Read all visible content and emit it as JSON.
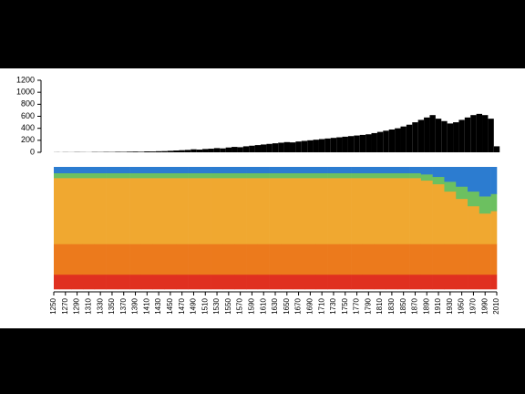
{
  "chart_data": [
    {
      "type": "bar",
      "color": "#000000",
      "x": [
        1250,
        1260,
        1270,
        1280,
        1290,
        1300,
        1310,
        1320,
        1330,
        1340,
        1350,
        1360,
        1370,
        1380,
        1390,
        1400,
        1410,
        1420,
        1430,
        1440,
        1450,
        1460,
        1470,
        1480,
        1490,
        1500,
        1510,
        1520,
        1530,
        1540,
        1550,
        1560,
        1570,
        1580,
        1590,
        1600,
        1610,
        1620,
        1630,
        1640,
        1650,
        1660,
        1670,
        1680,
        1690,
        1700,
        1710,
        1720,
        1730,
        1740,
        1750,
        1760,
        1770,
        1780,
        1790,
        1800,
        1810,
        1820,
        1830,
        1840,
        1850,
        1860,
        1870,
        1880,
        1890,
        1900,
        1910,
        1920,
        1930,
        1940,
        1950,
        1960,
        1970,
        1980,
        1990,
        2000,
        2010
      ],
      "values": [
        2,
        1,
        3,
        2,
        4,
        3,
        2,
        5,
        4,
        6,
        5,
        8,
        7,
        10,
        12,
        9,
        15,
        14,
        18,
        20,
        25,
        30,
        35,
        40,
        50,
        45,
        55,
        60,
        70,
        65,
        80,
        90,
        85,
        100,
        110,
        120,
        130,
        140,
        150,
        160,
        170,
        165,
        180,
        190,
        200,
        210,
        220,
        230,
        240,
        250,
        260,
        270,
        280,
        290,
        300,
        320,
        340,
        360,
        380,
        400,
        430,
        460,
        500,
        540,
        580,
        620,
        560,
        520,
        480,
        500,
        540,
        580,
        620,
        640,
        620,
        560,
        100
      ],
      "xlim": [
        1250,
        2010
      ],
      "ylim": [
        0,
        1200
      ],
      "yticks": [
        0,
        200,
        400,
        600,
        800,
        1000,
        1200
      ]
    },
    {
      "type": "stacked-column",
      "x": [
        1250,
        1270,
        1290,
        1310,
        1330,
        1350,
        1370,
        1390,
        1410,
        1430,
        1450,
        1470,
        1490,
        1510,
        1530,
        1550,
        1570,
        1590,
        1610,
        1630,
        1650,
        1670,
        1690,
        1710,
        1730,
        1750,
        1770,
        1790,
        1810,
        1830,
        1850,
        1870,
        1890,
        1910,
        1930,
        1950,
        1970,
        1990,
        2010
      ],
      "xlim": [
        1250,
        2010
      ],
      "xticks": [
        1250,
        1270,
        1290,
        1310,
        1330,
        1350,
        1370,
        1390,
        1410,
        1430,
        1450,
        1470,
        1490,
        1510,
        1530,
        1550,
        1570,
        1590,
        1610,
        1630,
        1650,
        1670,
        1690,
        1710,
        1730,
        1750,
        1770,
        1790,
        1810,
        1830,
        1850,
        1870,
        1890,
        1910,
        1930,
        1950,
        1970,
        1990,
        2010
      ],
      "series": [
        {
          "color": "#e03020",
          "values": [
            12,
            12,
            12,
            12,
            12,
            12,
            12,
            12,
            12,
            12,
            12,
            12,
            12,
            12,
            12,
            12,
            12,
            12,
            12,
            12,
            12,
            12,
            12,
            12,
            12,
            12,
            12,
            12,
            12,
            12,
            12,
            12,
            12,
            12,
            12,
            12,
            12,
            12,
            12
          ]
        },
        {
          "color": "#ec7a1c",
          "values": [
            25,
            25,
            25,
            25,
            25,
            25,
            25,
            25,
            25,
            25,
            25,
            25,
            25,
            25,
            25,
            25,
            25,
            25,
            25,
            25,
            25,
            25,
            25,
            25,
            25,
            25,
            25,
            25,
            25,
            25,
            25,
            25,
            25,
            25,
            25,
            25,
            25,
            25,
            25
          ]
        },
        {
          "color": "#f0a830",
          "values": [
            54,
            54,
            54,
            54,
            54,
            54,
            54,
            54,
            54,
            54,
            54,
            54,
            54,
            54,
            54,
            54,
            54,
            54,
            54,
            54,
            54,
            54,
            54,
            54,
            54,
            54,
            54,
            54,
            54,
            54,
            54,
            54,
            52,
            49,
            43,
            37,
            31,
            25,
            27
          ]
        },
        {
          "color": "#6cc060",
          "values": [
            4,
            4,
            4,
            4,
            4,
            4,
            4,
            4,
            4,
            4,
            4,
            4,
            4,
            4,
            4,
            4,
            4,
            4,
            4,
            4,
            4,
            4,
            4,
            4,
            4,
            4,
            4,
            4,
            4,
            4,
            4,
            4,
            5,
            6,
            8,
            10,
            12,
            14,
            14
          ]
        },
        {
          "color": "#2c7cd0",
          "values": [
            5,
            5,
            5,
            5,
            5,
            5,
            5,
            5,
            5,
            5,
            5,
            5,
            5,
            5,
            5,
            5,
            5,
            5,
            5,
            5,
            5,
            5,
            5,
            5,
            5,
            5,
            5,
            5,
            5,
            5,
            5,
            5,
            6,
            8,
            12,
            16,
            20,
            24,
            22
          ]
        }
      ]
    }
  ]
}
